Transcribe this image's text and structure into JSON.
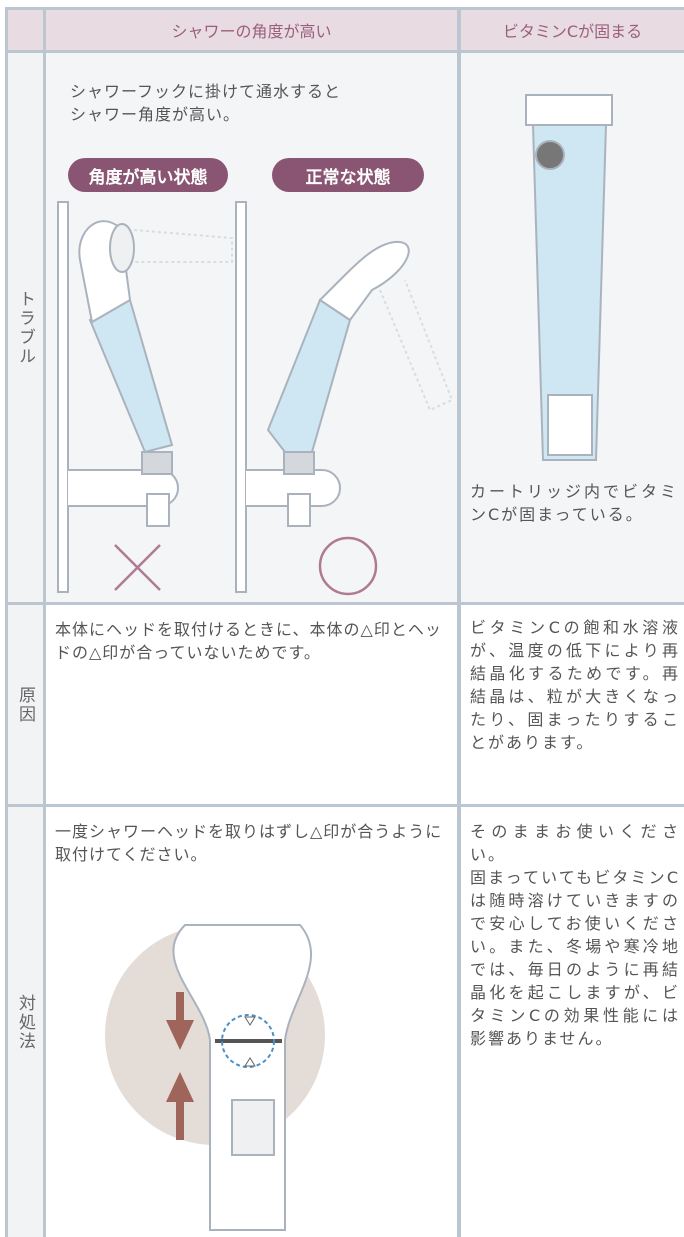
{
  "header": {
    "col1": "シャワーの角度が高い",
    "col2": "ビタミンCが固まる"
  },
  "rows": [
    {
      "label": "トラブル",
      "col1": {
        "lines": [
          "シャワーフックに掛けて通水すると",
          "シャワー角度が高い。"
        ],
        "badge_bad": "角度が高い状態",
        "badge_good": "正常な状態"
      },
      "col2": "カートリッジ内でビタミンCが固まっている。"
    },
    {
      "label": "原因",
      "col1": "本体にヘッドを取付けるときに、本体の△印とヘッドの△印が合っていないためです。",
      "col2": "ビタミンCの飽和水溶液が、温度の低下により再結晶化するためです。再結晶は、粒が大きくなったり、固まったりすることがあります。"
    },
    {
      "label": "対処法",
      "col1": "一度シャワーヘッドを取りはずし△印が合うように取付けてください。",
      "col2": [
        "そのままお使いください。",
        "固まっていてもビタミンCは随時溶けていきますので安心してお使いください。また、冬場や寒冷地では、毎日のように再結晶化を起こしますが、ビタミンCの効果性能には影響ありません。"
      ]
    }
  ]
}
